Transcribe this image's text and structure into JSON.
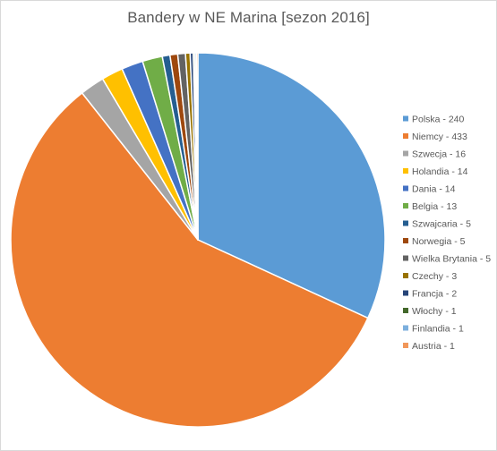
{
  "chart_data": {
    "type": "pie",
    "title": "Bandery w NE Marina [sezon 2016]",
    "legend_position": "right",
    "slices": [
      {
        "label": "Polska - 240",
        "value": 240,
        "color": "#5B9BD5"
      },
      {
        "label": "Niemcy - 433",
        "value": 433,
        "color": "#ED7D31"
      },
      {
        "label": "Szwecja - 16",
        "value": 16,
        "color": "#A5A5A5"
      },
      {
        "label": "Holandia - 14",
        "value": 14,
        "color": "#FFC000"
      },
      {
        "label": "Dania - 14",
        "value": 14,
        "color": "#4472C4"
      },
      {
        "label": "Belgia - 13",
        "value": 13,
        "color": "#70AD47"
      },
      {
        "label": "Szwajcaria - 5",
        "value": 5,
        "color": "#255E91"
      },
      {
        "label": "Norwegia - 5",
        "value": 5,
        "color": "#9E480E"
      },
      {
        "label": "Wielka Brytania - 5",
        "value": 5,
        "color": "#636363"
      },
      {
        "label": "Czechy - 3",
        "value": 3,
        "color": "#997300"
      },
      {
        "label": "Francja - 2",
        "value": 2,
        "color": "#264478"
      },
      {
        "label": "Włochy - 1",
        "value": 1,
        "color": "#43682B"
      },
      {
        "label": "Finlandia - 1",
        "value": 1,
        "color": "#7CAFDD"
      },
      {
        "label": "Austria - 1",
        "value": 1,
        "color": "#F1975A"
      }
    ]
  }
}
